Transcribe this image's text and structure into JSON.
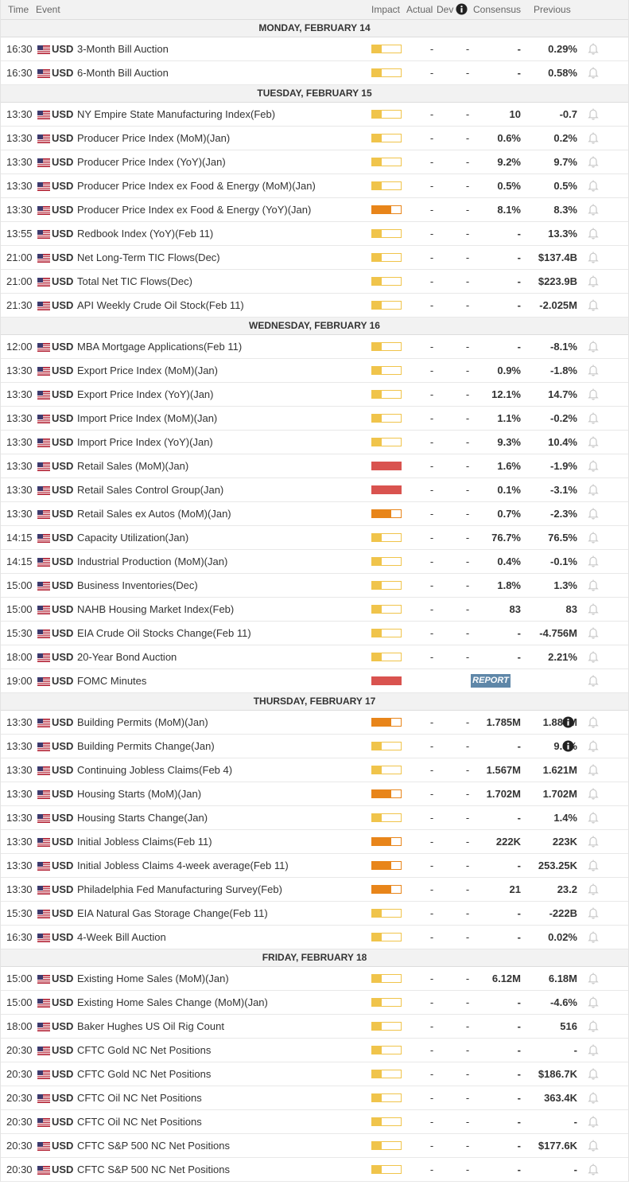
{
  "header": {
    "time": "Time",
    "event": "Event",
    "impact": "Impact",
    "actual": "Actual",
    "dev": "Dev",
    "consensus": "Consensus",
    "previous": "Previous"
  },
  "colors": {
    "low_impact": "#f0c44b",
    "medium_impact": "#e8851a",
    "high_impact": "#d9534f",
    "report_button": "#5f87a8"
  },
  "icons": {
    "flag": "us-flag-icon",
    "alert": "bell-icon",
    "info": "info-icon"
  },
  "days": [
    {
      "label": "MONDAY, FEBRUARY 14",
      "events": [
        {
          "time": "16:30",
          "currency": "USD",
          "event": "3-Month Bill Auction",
          "impact": "low",
          "actual": "-",
          "dev": "-",
          "consensus": "-",
          "previous": "0.29%"
        },
        {
          "time": "16:30",
          "currency": "USD",
          "event": "6-Month Bill Auction",
          "impact": "low",
          "actual": "-",
          "dev": "-",
          "consensus": "-",
          "previous": "0.58%"
        }
      ]
    },
    {
      "label": "TUESDAY, FEBRUARY 15",
      "events": [
        {
          "time": "13:30",
          "currency": "USD",
          "event": "NY Empire State Manufacturing Index(Feb)",
          "impact": "low",
          "actual": "-",
          "dev": "-",
          "consensus": "10",
          "previous": "-0.7"
        },
        {
          "time": "13:30",
          "currency": "USD",
          "event": "Producer Price Index (MoM)(Jan)",
          "impact": "low",
          "actual": "-",
          "dev": "-",
          "consensus": "0.6%",
          "previous": "0.2%"
        },
        {
          "time": "13:30",
          "currency": "USD",
          "event": "Producer Price Index (YoY)(Jan)",
          "impact": "low",
          "actual": "-",
          "dev": "-",
          "consensus": "9.2%",
          "previous": "9.7%"
        },
        {
          "time": "13:30",
          "currency": "USD",
          "event": "Producer Price Index ex Food & Energy (MoM)(Jan)",
          "impact": "low",
          "actual": "-",
          "dev": "-",
          "consensus": "0.5%",
          "previous": "0.5%"
        },
        {
          "time": "13:30",
          "currency": "USD",
          "event": "Producer Price Index ex Food & Energy (YoY)(Jan)",
          "impact": "med",
          "actual": "-",
          "dev": "-",
          "consensus": "8.1%",
          "previous": "8.3%"
        },
        {
          "time": "13:55",
          "currency": "USD",
          "event": "Redbook Index (YoY)(Feb 11)",
          "impact": "low",
          "actual": "-",
          "dev": "-",
          "consensus": "-",
          "previous": "13.3%"
        },
        {
          "time": "21:00",
          "currency": "USD",
          "event": "Net Long-Term TIC Flows(Dec)",
          "impact": "low",
          "actual": "-",
          "dev": "-",
          "consensus": "-",
          "previous": "$137.4B"
        },
        {
          "time": "21:00",
          "currency": "USD",
          "event": "Total Net TIC Flows(Dec)",
          "impact": "low",
          "actual": "-",
          "dev": "-",
          "consensus": "-",
          "previous": "$223.9B"
        },
        {
          "time": "21:30",
          "currency": "USD",
          "event": "API Weekly Crude Oil Stock(Feb 11)",
          "impact": "low",
          "actual": "-",
          "dev": "-",
          "consensus": "-",
          "previous": "-2.025M"
        }
      ]
    },
    {
      "label": "WEDNESDAY, FEBRUARY 16",
      "events": [
        {
          "time": "12:00",
          "currency": "USD",
          "event": "MBA Mortgage Applications(Feb 11)",
          "impact": "low",
          "actual": "-",
          "dev": "-",
          "consensus": "-",
          "previous": "-8.1%"
        },
        {
          "time": "13:30",
          "currency": "USD",
          "event": "Export Price Index (MoM)(Jan)",
          "impact": "low",
          "actual": "-",
          "dev": "-",
          "consensus": "0.9%",
          "previous": "-1.8%"
        },
        {
          "time": "13:30",
          "currency": "USD",
          "event": "Export Price Index (YoY)(Jan)",
          "impact": "low",
          "actual": "-",
          "dev": "-",
          "consensus": "12.1%",
          "previous": "14.7%"
        },
        {
          "time": "13:30",
          "currency": "USD",
          "event": "Import Price Index (MoM)(Jan)",
          "impact": "low",
          "actual": "-",
          "dev": "-",
          "consensus": "1.1%",
          "previous": "-0.2%"
        },
        {
          "time": "13:30",
          "currency": "USD",
          "event": "Import Price Index (YoY)(Jan)",
          "impact": "low",
          "actual": "-",
          "dev": "-",
          "consensus": "9.3%",
          "previous": "10.4%"
        },
        {
          "time": "13:30",
          "currency": "USD",
          "event": "Retail Sales (MoM)(Jan)",
          "impact": "high",
          "actual": "-",
          "dev": "-",
          "consensus": "1.6%",
          "previous": "-1.9%"
        },
        {
          "time": "13:30",
          "currency": "USD",
          "event": "Retail Sales Control Group(Jan)",
          "impact": "high",
          "actual": "-",
          "dev": "-",
          "consensus": "0.1%",
          "previous": "-3.1%"
        },
        {
          "time": "13:30",
          "currency": "USD",
          "event": "Retail Sales ex Autos (MoM)(Jan)",
          "impact": "med",
          "actual": "-",
          "dev": "-",
          "consensus": "0.7%",
          "previous": "-2.3%"
        },
        {
          "time": "14:15",
          "currency": "USD",
          "event": "Capacity Utilization(Jan)",
          "impact": "low",
          "actual": "-",
          "dev": "-",
          "consensus": "76.7%",
          "previous": "76.5%"
        },
        {
          "time": "14:15",
          "currency": "USD",
          "event": "Industrial Production (MoM)(Jan)",
          "impact": "low",
          "actual": "-",
          "dev": "-",
          "consensus": "0.4%",
          "previous": "-0.1%"
        },
        {
          "time": "15:00",
          "currency": "USD",
          "event": "Business Inventories(Dec)",
          "impact": "low",
          "actual": "-",
          "dev": "-",
          "consensus": "1.8%",
          "previous": "1.3%"
        },
        {
          "time": "15:00",
          "currency": "USD",
          "event": "NAHB Housing Market Index(Feb)",
          "impact": "low",
          "actual": "-",
          "dev": "-",
          "consensus": "83",
          "previous": "83"
        },
        {
          "time": "15:30",
          "currency": "USD",
          "event": "EIA Crude Oil Stocks Change(Feb 11)",
          "impact": "low",
          "actual": "-",
          "dev": "-",
          "consensus": "-",
          "previous": "-4.756M"
        },
        {
          "time": "18:00",
          "currency": "USD",
          "event": "20-Year Bond Auction",
          "impact": "low",
          "actual": "-",
          "dev": "-",
          "consensus": "-",
          "previous": "2.21%"
        },
        {
          "time": "19:00",
          "currency": "USD",
          "event": "FOMC Minutes",
          "impact": "high",
          "report": "REPORT"
        }
      ]
    },
    {
      "label": "THURSDAY, FEBRUARY 17",
      "events": [
        {
          "time": "13:30",
          "currency": "USD",
          "event": "Building Permits (MoM)(Jan)",
          "impact": "med",
          "actual": "-",
          "dev": "-",
          "consensus": "1.785M",
          "previous": "1.885M",
          "revised": true
        },
        {
          "time": "13:30",
          "currency": "USD",
          "event": "Building Permits Change(Jan)",
          "impact": "low",
          "actual": "-",
          "dev": "-",
          "consensus": "-",
          "previous": "9.8%",
          "revised": true
        },
        {
          "time": "13:30",
          "currency": "USD",
          "event": "Continuing Jobless Claims(Feb 4)",
          "impact": "low",
          "actual": "-",
          "dev": "-",
          "consensus": "1.567M",
          "previous": "1.621M"
        },
        {
          "time": "13:30",
          "currency": "USD",
          "event": "Housing Starts (MoM)(Jan)",
          "impact": "med",
          "actual": "-",
          "dev": "-",
          "consensus": "1.702M",
          "previous": "1.702M"
        },
        {
          "time": "13:30",
          "currency": "USD",
          "event": "Housing Starts Change(Jan)",
          "impact": "low",
          "actual": "-",
          "dev": "-",
          "consensus": "-",
          "previous": "1.4%"
        },
        {
          "time": "13:30",
          "currency": "USD",
          "event": "Initial Jobless Claims(Feb 11)",
          "impact": "med",
          "actual": "-",
          "dev": "-",
          "consensus": "222K",
          "previous": "223K"
        },
        {
          "time": "13:30",
          "currency": "USD",
          "event": "Initial Jobless Claims 4-week average(Feb 11)",
          "impact": "med",
          "actual": "-",
          "dev": "-",
          "consensus": "-",
          "previous": "253.25K"
        },
        {
          "time": "13:30",
          "currency": "USD",
          "event": "Philadelphia Fed Manufacturing Survey(Feb)",
          "impact": "med",
          "actual": "-",
          "dev": "-",
          "consensus": "21",
          "previous": "23.2"
        },
        {
          "time": "15:30",
          "currency": "USD",
          "event": "EIA Natural Gas Storage Change(Feb 11)",
          "impact": "low",
          "actual": "-",
          "dev": "-",
          "consensus": "-",
          "previous": "-222B"
        },
        {
          "time": "16:30",
          "currency": "USD",
          "event": "4-Week Bill Auction",
          "impact": "low",
          "actual": "-",
          "dev": "-",
          "consensus": "-",
          "previous": "0.02%"
        }
      ]
    },
    {
      "label": "FRIDAY, FEBRUARY 18",
      "events": [
        {
          "time": "15:00",
          "currency": "USD",
          "event": "Existing Home Sales (MoM)(Jan)",
          "impact": "low",
          "actual": "-",
          "dev": "-",
          "consensus": "6.12M",
          "previous": "6.18M"
        },
        {
          "time": "15:00",
          "currency": "USD",
          "event": "Existing Home Sales Change (MoM)(Jan)",
          "impact": "low",
          "actual": "-",
          "dev": "-",
          "consensus": "-",
          "previous": "-4.6%"
        },
        {
          "time": "18:00",
          "currency": "USD",
          "event": "Baker Hughes US Oil Rig Count",
          "impact": "low",
          "actual": "-",
          "dev": "-",
          "consensus": "-",
          "previous": "516"
        },
        {
          "time": "20:30",
          "currency": "USD",
          "event": "CFTC Gold NC Net Positions",
          "impact": "low",
          "actual": "-",
          "dev": "-",
          "consensus": "-",
          "previous": "-"
        },
        {
          "time": "20:30",
          "currency": "USD",
          "event": "CFTC Gold NC Net Positions",
          "impact": "low",
          "actual": "-",
          "dev": "-",
          "consensus": "-",
          "previous": "$186.7K"
        },
        {
          "time": "20:30",
          "currency": "USD",
          "event": "CFTC Oil NC Net Positions",
          "impact": "low",
          "actual": "-",
          "dev": "-",
          "consensus": "-",
          "previous": "363.4K"
        },
        {
          "time": "20:30",
          "currency": "USD",
          "event": "CFTC Oil NC Net Positions",
          "impact": "low",
          "actual": "-",
          "dev": "-",
          "consensus": "-",
          "previous": "-"
        },
        {
          "time": "20:30",
          "currency": "USD",
          "event": "CFTC S&P 500 NC Net Positions",
          "impact": "low",
          "actual": "-",
          "dev": "-",
          "consensus": "-",
          "previous": "$177.6K"
        },
        {
          "time": "20:30",
          "currency": "USD",
          "event": "CFTC S&P 500 NC Net Positions",
          "impact": "low",
          "actual": "-",
          "dev": "-",
          "consensus": "-",
          "previous": "-"
        }
      ]
    }
  ]
}
